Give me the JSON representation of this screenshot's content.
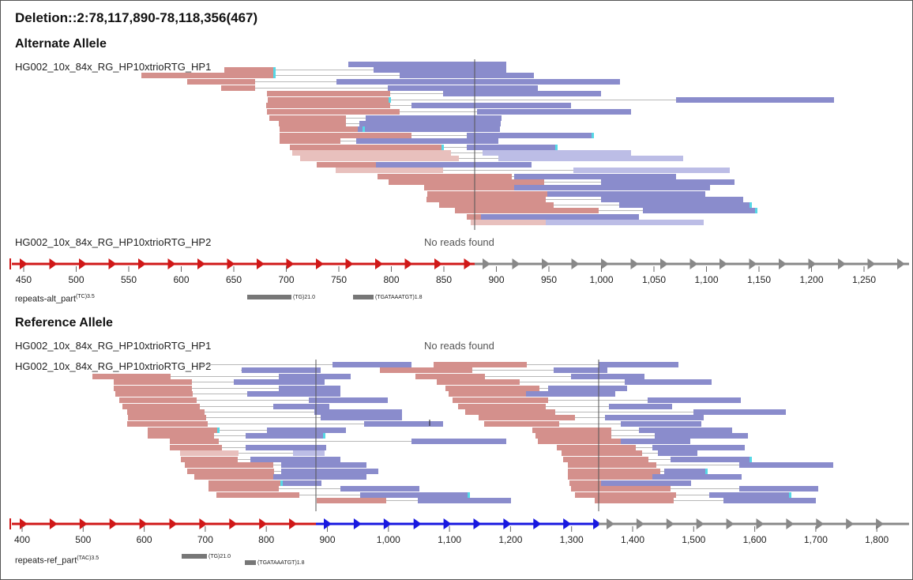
{
  "title": "Deletion::2:78,117,890-78,118,356(467)",
  "alt": {
    "heading": "Alternate Allele",
    "track_hp1": "HG002_10x_84x_RG_HP10xtrioRTG_HP1",
    "track_hp2": "HG002_10x_84x_RG_HP10xtrioRTG_HP2",
    "hp2_message": "No reads found",
    "axis_ticks": [
      "450",
      "500",
      "550",
      "600",
      "650",
      "700",
      "750",
      "800",
      "850",
      "900",
      "950",
      "1,000",
      "1,050",
      "1,100",
      "1,150",
      "1,200",
      "1,250"
    ],
    "repeats_label": "repeats-alt_part",
    "repeats_sup": "(TC)3.5",
    "repeat_features": [
      "(TG)21.0",
      "(TGATAAATGT)1.8"
    ]
  },
  "ref": {
    "heading": "Reference Allele",
    "track_hp1": "HG002_10x_84x_RG_HP10xtrioRTG_HP1",
    "hp1_message": "No reads found",
    "track_hp2": "HG002_10x_84x_RG_HP10xtrioRTG_HP2",
    "axis_ticks": [
      "400",
      "500",
      "600",
      "700",
      "800",
      "900",
      "1,000",
      "1,100",
      "1,200",
      "1,300",
      "1,400",
      "1,500",
      "1,600",
      "1,700",
      "1,800"
    ],
    "repeats_label": "repeats-ref_part",
    "repeats_sup": "(TAC)3.5",
    "repeat_features": [
      "(TG)21.0",
      "(TGATAAATGT)1.8"
    ]
  },
  "colors": {
    "read_left": "#d4908c",
    "read_left_light": "#e8c0bd",
    "read_right": "#8a8ccc",
    "read_right_light": "#bcbde6",
    "clip": "#56d8e6",
    "axis_red": "#d01818",
    "axis_blue": "#1818e0",
    "axis_gray": "#888888",
    "repeat": "#777777"
  }
}
